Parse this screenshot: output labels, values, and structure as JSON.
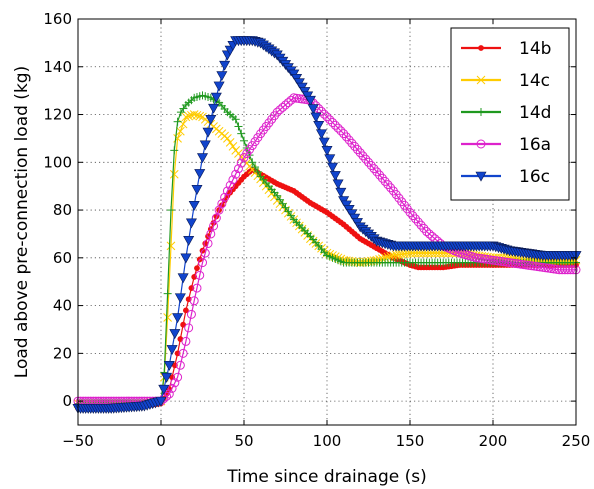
{
  "chart_data": {
    "type": "line",
    "title": "",
    "xlabel": "Time since drainage (s)",
    "ylabel": "Load above pre-connection load (kg)",
    "xlim": [
      -50,
      250
    ],
    "ylim": [
      -10,
      160
    ],
    "xticks": [
      -50,
      0,
      50,
      100,
      150,
      200,
      250
    ],
    "yticks": [
      0,
      20,
      40,
      60,
      80,
      100,
      120,
      140,
      160
    ],
    "xtick_labels": [
      "−50",
      "0",
      "50",
      "100",
      "150",
      "200",
      "250"
    ],
    "ytick_labels": [
      "0",
      "20",
      "40",
      "60",
      "80",
      "100",
      "120",
      "140",
      "160"
    ],
    "grid": true,
    "legend_position": "top-right",
    "series": [
      {
        "name": "14b",
        "color": "#ee1111",
        "marker": "dot",
        "x": [
          -50,
          -30,
          -10,
          0,
          5,
          10,
          15,
          20,
          25,
          30,
          35,
          40,
          45,
          50,
          55,
          60,
          65,
          70,
          80,
          90,
          100,
          110,
          120,
          130,
          140,
          150,
          155,
          160,
          170,
          180,
          190,
          200,
          210,
          220,
          230,
          240,
          250
        ],
        "y": [
          -3,
          -3,
          -2,
          -1,
          5,
          20,
          38,
          52,
          63,
          72,
          80,
          86,
          90,
          94,
          97,
          95,
          93,
          91,
          88,
          83,
          79,
          74,
          68,
          64,
          60,
          57,
          56,
          56,
          56,
          57,
          57,
          57,
          57,
          57,
          57,
          57,
          57
        ]
      },
      {
        "name": "14c",
        "color": "#ffcc00",
        "marker": "x",
        "x": [
          -50,
          -30,
          -10,
          0,
          2,
          4,
          6,
          8,
          10,
          15,
          20,
          25,
          30,
          35,
          40,
          45,
          50,
          55,
          60,
          70,
          80,
          90,
          100,
          110,
          120,
          130,
          140,
          150,
          160,
          170,
          180,
          190,
          200,
          210,
          220,
          230,
          240,
          250
        ],
        "y": [
          -1,
          -1,
          -1,
          0,
          10,
          35,
          65,
          95,
          110,
          119,
          120,
          119,
          116,
          113,
          110,
          105,
          101,
          97,
          93,
          84,
          76,
          68,
          62,
          59,
          58,
          59,
          61,
          62,
          62,
          62,
          62,
          61,
          60,
          60,
          59,
          59,
          59,
          59
        ]
      },
      {
        "name": "14d",
        "color": "#1f991f",
        "marker": "plus",
        "x": [
          -50,
          -30,
          -10,
          0,
          2,
          4,
          6,
          8,
          10,
          12,
          15,
          20,
          25,
          30,
          35,
          40,
          45,
          50,
          55,
          60,
          70,
          80,
          90,
          100,
          110,
          120,
          130,
          140,
          150,
          160,
          170,
          180,
          190,
          200,
          210,
          220,
          230,
          240,
          250
        ],
        "y": [
          -1,
          -1,
          -1,
          0,
          12,
          45,
          80,
          105,
          117,
          121,
          124,
          127,
          128,
          127,
          125,
          121,
          118,
          109,
          100,
          94,
          86,
          76,
          69,
          61,
          58,
          58,
          58,
          58,
          58,
          58,
          58,
          58,
          58,
          58,
          58,
          58,
          58,
          58,
          58
        ]
      },
      {
        "name": "16a",
        "color": "#dd22cc",
        "marker": "circle",
        "x": [
          -50,
          -30,
          -10,
          0,
          5,
          10,
          15,
          20,
          25,
          30,
          35,
          40,
          45,
          50,
          60,
          70,
          80,
          90,
          100,
          110,
          120,
          130,
          140,
          150,
          160,
          170,
          180,
          190,
          200,
          210,
          220,
          230,
          240,
          250
        ],
        "y": [
          0,
          0,
          0,
          0,
          3,
          10,
          25,
          42,
          58,
          70,
          80,
          88,
          95,
          102,
          112,
          121,
          127,
          126,
          119,
          112,
          104,
          96,
          88,
          79,
          71,
          65,
          62,
          60,
          59,
          58,
          57,
          56,
          55,
          55
        ]
      },
      {
        "name": "16c",
        "color": "#1144cc",
        "marker": "triangle-down",
        "x": [
          -50,
          -30,
          -10,
          0,
          5,
          10,
          15,
          20,
          25,
          30,
          35,
          40,
          45,
          50,
          55,
          60,
          70,
          80,
          90,
          100,
          110,
          120,
          130,
          140,
          150,
          160,
          170,
          180,
          190,
          200,
          210,
          220,
          230,
          240,
          250
        ],
        "y": [
          -3,
          -3,
          -2,
          0,
          15,
          35,
          60,
          82,
          102,
          118,
          132,
          145,
          151,
          151,
          151,
          150,
          145,
          137,
          126,
          105,
          84,
          73,
          67,
          65,
          65,
          65,
          65,
          65,
          65,
          65,
          63,
          62,
          61,
          61,
          61
        ]
      }
    ]
  }
}
